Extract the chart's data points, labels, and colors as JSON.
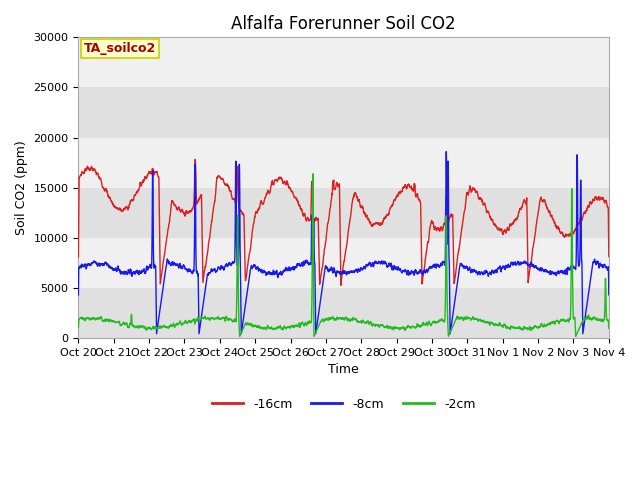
{
  "title": "Alfalfa Forerunner Soil CO2",
  "ylabel": "Soil CO2 (ppm)",
  "xlabel": "Time",
  "annotation": "TA_soilco2",
  "legend_labels": [
    "-16cm",
    "-8cm",
    "-2cm"
  ],
  "legend_colors": [
    "#dd2020",
    "#1a1aee",
    "#22bb22"
  ],
  "ylim": [
    0,
    30000
  ],
  "yticks": [
    0,
    5000,
    10000,
    15000,
    20000,
    25000,
    30000
  ],
  "xtick_labels": [
    "Oct 20",
    "Oct 21",
    "Oct 22",
    "Oct 23",
    "Oct 24",
    "Oct 25",
    "Oct 26",
    "Oct 27",
    "Oct 28",
    "Oct 29",
    "Oct 30",
    "Oct 31",
    "Nov 1",
    "Nov 2",
    "Nov 3",
    "Nov 4"
  ],
  "fig_bg_color": "#ffffff",
  "plot_bg_light": "#f0f0f0",
  "plot_bg_dark": "#e0e0e0",
  "line_width": 1.0,
  "title_fontsize": 12,
  "axis_fontsize": 9,
  "tick_fontsize": 8,
  "annotation_fontsize": 9,
  "annotation_color": "#aa0000",
  "annotation_bg": "#ffffcc",
  "annotation_border": "#cccc00"
}
